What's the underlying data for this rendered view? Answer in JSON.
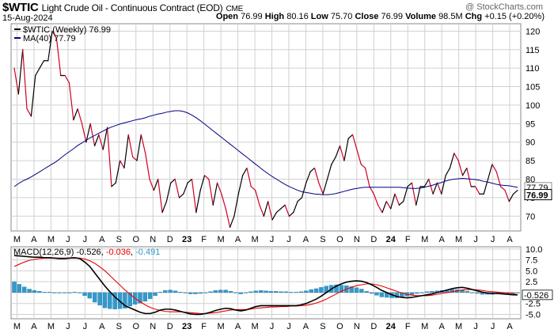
{
  "header": {
    "symbol": "$WTIC",
    "description": "Light Crude Oil - Continuous Contract (EOD)",
    "exchange": "CME",
    "date": "15-Aug-2024",
    "watermark": "@ StockCharts.com",
    "open_label": "Open",
    "open": "76.99",
    "high_label": "High",
    "high": "80.16",
    "low_label": "Low",
    "low": "75.70",
    "close_label": "Close",
    "close": "76.99",
    "volume_label": "Volume",
    "volume": "98.5M",
    "chg_label": "Chg",
    "chg": "+0.15 (+0.20%)"
  },
  "colors": {
    "price_up": "#000000",
    "price_down": "#cc0022",
    "ma": "#000080",
    "macd": "#000000",
    "signal": "#ee0000",
    "hist": "#3399cc",
    "grid": "#d0d0d0"
  },
  "chart_data": [
    {
      "type": "line",
      "legend": [
        {
          "label": "$WTIC (Weekly) 76.99",
          "icon": "black-dash"
        },
        {
          "label": "MA(40) 77.79",
          "icon": "navy-dash"
        }
      ],
      "legend_position": "top-left",
      "grid": true,
      "ylim": [
        66,
        122
      ],
      "y_ticks": [
        70,
        75,
        80,
        85,
        90,
        95,
        100,
        105,
        110,
        115,
        120
      ],
      "x_tick_labels": [
        "M",
        "A",
        "M",
        "J",
        "J",
        "A",
        "S",
        "O",
        "N",
        "D",
        "23",
        "F",
        "M",
        "A",
        "M",
        "J",
        "J",
        "A",
        "S",
        "O",
        "N",
        "D",
        "24",
        "F",
        "M",
        "A",
        "M",
        "J",
        "J",
        "A"
      ],
      "last_price_label": "76.99",
      "ma_price_label": "77.79",
      "series": [
        {
          "name": "$WTIC (Weekly)",
          "values": [
            110,
            103,
            115,
            99,
            97,
            108,
            110,
            112,
            112,
            120,
            118,
            108,
            108,
            106,
            96,
            99,
            95,
            90,
            95,
            89,
            92,
            88,
            94,
            78,
            79,
            85,
            83,
            92,
            86,
            85,
            92,
            87,
            80,
            77,
            80,
            71,
            74,
            79,
            80,
            75,
            76,
            79,
            80,
            71,
            77,
            81,
            80,
            73,
            79,
            76,
            72,
            67,
            70,
            76,
            81,
            83,
            78,
            77,
            73,
            70,
            74,
            69,
            71,
            72,
            73,
            70,
            71,
            74,
            75,
            79,
            82,
            83,
            79,
            76,
            80,
            84,
            86,
            89,
            85,
            91,
            92,
            88,
            84,
            83,
            78,
            76,
            73,
            71,
            74,
            72,
            76,
            73,
            74,
            78,
            79,
            73,
            78,
            78,
            80,
            76,
            79,
            76,
            81,
            83,
            87,
            85,
            81,
            83,
            78,
            78,
            76,
            76,
            80,
            84,
            82,
            78,
            77,
            74,
            76,
            76.99
          ]
        },
        {
          "name": "MA(40)",
          "values": [
            78,
            78.8,
            79.5,
            80,
            80.6,
            81.3,
            82,
            82.7,
            83.4,
            84.1,
            84.8,
            85.7,
            86.6,
            87.4,
            88.2,
            89.1,
            89.8,
            90.5,
            91.2,
            91.8,
            92.4,
            93,
            93.6,
            94.1,
            94.5,
            94.9,
            95.2,
            95.5,
            95.8,
            96.1,
            96.3,
            96.6,
            97,
            97.3,
            97.6,
            97.8,
            98.1,
            98.3,
            98.5,
            98.5,
            98.3,
            97.9,
            97.3,
            96.6,
            95.8,
            94.9,
            94,
            93.1,
            92.2,
            91.3,
            90.4,
            89.5,
            88.6,
            87.7,
            86.8,
            85.9,
            85,
            84.1,
            83.2,
            82.3,
            81.5,
            80.7,
            80,
            79.3,
            78.6,
            78,
            77.5,
            77,
            76.6,
            76.4,
            76.2,
            76,
            75.9,
            75.8,
            75.8,
            75.9,
            76.1,
            76.4,
            76.7,
            77,
            77.3,
            77.5,
            77.7,
            77.8,
            77.8,
            77.8,
            77.8,
            77.8,
            77.8,
            77.8,
            77.8,
            77.8,
            77.7,
            77.6,
            77.5,
            77.5,
            77.6,
            77.8,
            78.1,
            78.4,
            78.8,
            79.1,
            79.5,
            79.8,
            80,
            80.1,
            80.2,
            80.1,
            80,
            79.9,
            79.7,
            79.4,
            79.2,
            78.9,
            78.6,
            78.4,
            78.3,
            78.2,
            78,
            77.79
          ]
        }
      ]
    },
    {
      "type": "line",
      "legend": [
        {
          "label": "MACD(12,26,9)",
          "icon": "black-dash"
        },
        {
          "label": "-0.526",
          "icon": "none"
        },
        {
          "label": "-0.036",
          "icon": "none"
        },
        {
          "label": "-0.491",
          "icon": "none"
        }
      ],
      "legend_position": "top-left",
      "grid": true,
      "ylim": [
        -6,
        10.5
      ],
      "y_ticks": [
        -5.0,
        -2.5,
        0.0,
        2.5,
        5.0,
        7.5,
        10.0
      ],
      "y_tick_labels": [
        "-5.0",
        "-2.5",
        "0.0",
        "2.5",
        "5.0",
        "7.5",
        "10.0"
      ],
      "x_tick_labels": [
        "M",
        "A",
        "M",
        "J",
        "J",
        "A",
        "S",
        "O",
        "N",
        "D",
        "23",
        "F",
        "M",
        "A",
        "M",
        "J",
        "J",
        "A",
        "S",
        "O",
        "N",
        "D",
        "24",
        "F",
        "M",
        "A",
        "M",
        "J",
        "J",
        "A"
      ],
      "last_value_label": "-0.526",
      "series": [
        {
          "name": "MACD",
          "values": [
            8.5,
            8.4,
            8.3,
            8.2,
            8.1,
            8.1,
            8,
            8,
            7.9,
            7.8,
            7.8,
            7.9,
            8,
            7.8,
            7,
            6,
            4.5,
            3,
            1.5,
            0.2,
            -1,
            -2,
            -3,
            -3.5,
            -4,
            -4.5,
            -4.8,
            -4.8,
            -4.5,
            -4,
            -3.8,
            -3.8,
            -4,
            -4.3,
            -4.6,
            -4.9,
            -5,
            -5,
            -4.8,
            -4.5,
            -4.1,
            -3.8,
            -3.6,
            -3.7,
            -4,
            -4.2,
            -4,
            -3.6,
            -3.2,
            -3,
            -3,
            -3,
            -3,
            -3,
            -3,
            -3,
            -3,
            -2.8,
            -2.5,
            -2,
            -1.5,
            -0.8,
            0,
            0.8,
            1.5,
            2,
            2.4,
            2.6,
            2.7,
            2.6,
            2.3,
            1.8,
            1.2,
            0.5,
            0,
            -0.5,
            -0.9,
            -1.1,
            -1.2,
            -1.1,
            -0.9,
            -0.7,
            -0.5,
            -0.3,
            0,
            0.3,
            0.6,
            0.9,
            1.1,
            1.2,
            1,
            0.7,
            0.4,
            0.1,
            -0.1,
            -0.2,
            -0.2,
            -0.3,
            -0.4,
            -0.5,
            -0.526
          ]
        },
        {
          "name": "Signal",
          "values": [
            6,
            6.5,
            7,
            7.4,
            7.6,
            7.8,
            7.9,
            7.9,
            7.9,
            7.9,
            7.9,
            7.9,
            7.9,
            7.9,
            7.7,
            7.3,
            6.7,
            5.9,
            5,
            3.9,
            2.8,
            1.7,
            0.6,
            -0.4,
            -1.3,
            -2.1,
            -2.8,
            -3.4,
            -3.8,
            -4.1,
            -4.3,
            -4.4,
            -4.4,
            -4.4,
            -4.5,
            -4.6,
            -4.7,
            -4.8,
            -4.8,
            -4.7,
            -4.6,
            -4.4,
            -4.2,
            -4,
            -3.9,
            -3.9,
            -3.9,
            -3.8,
            -3.6,
            -3.5,
            -3.4,
            -3.3,
            -3.3,
            -3.2,
            -3.2,
            -3.1,
            -3.1,
            -3,
            -2.9,
            -2.7,
            -2.4,
            -2,
            -1.5,
            -0.9,
            -0.3,
            0.3,
            0.8,
            1.2,
            1.6,
            1.8,
            2,
            2,
            1.8,
            1.5,
            1.1,
            0.7,
            0.3,
            -0.1,
            -0.4,
            -0.6,
            -0.7,
            -0.7,
            -0.7,
            -0.6,
            -0.4,
            -0.2,
            0,
            0.2,
            0.4,
            0.6,
            0.7,
            0.7,
            0.6,
            0.5,
            0.3,
            0.2,
            0.1,
            0,
            -0.1,
            -0.2,
            -0.491
          ]
        },
        {
          "name": "Histogram",
          "values": [
            2.5,
            1.9,
            1.3,
            0.8,
            0.5,
            0.3,
            0.1,
            0.1,
            0,
            -0.1,
            -0.1,
            0,
            0.1,
            -0.1,
            -0.7,
            -1.3,
            -2.2,
            -2.9,
            -3.5,
            -3.7,
            -3.8,
            -3.7,
            -3.6,
            -3.1,
            -2.7,
            -2.4,
            -2,
            -1.4,
            -0.7,
            0.1,
            0.5,
            0.6,
            0.4,
            0.1,
            -0.1,
            -0.3,
            -0.3,
            -0.2,
            0,
            0.2,
            0.5,
            0.6,
            0.6,
            0.3,
            -0.1,
            -0.3,
            -0.1,
            0.2,
            0.4,
            0.5,
            0.4,
            0.3,
            0.3,
            0.2,
            0.2,
            0.1,
            0.1,
            0.2,
            0.4,
            0.7,
            0.9,
            1.2,
            1.5,
            1.7,
            1.8,
            1.7,
            1.6,
            1.4,
            1.1,
            0.8,
            0.3,
            -0.2,
            -0.6,
            -1,
            -1.1,
            -1.2,
            -1.2,
            -1,
            -0.8,
            -0.5,
            -0.2,
            0,
            0.2,
            0.3,
            0.4,
            0.5,
            0.6,
            0.7,
            0.7,
            0.6,
            0.3,
            0,
            -0.2,
            -0.4,
            -0.4,
            -0.4,
            -0.3,
            -0.3,
            -0.3,
            -0.3,
            -0.036
          ]
        }
      ]
    }
  ]
}
